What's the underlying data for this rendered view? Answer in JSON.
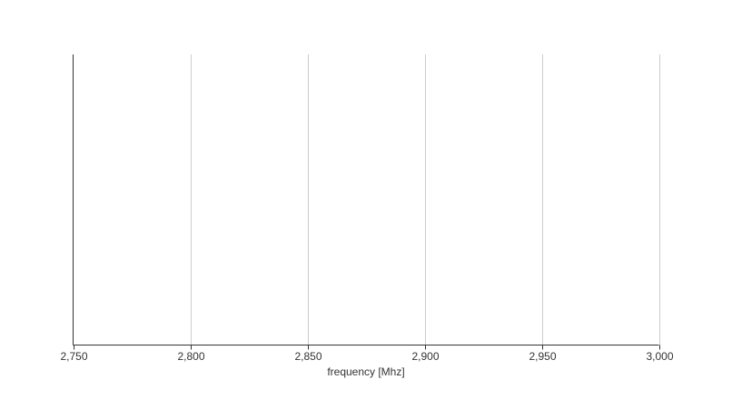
{
  "chart_data": {
    "type": "line",
    "title": "",
    "xlabel": "frequency [Mhz]",
    "ylabel": "",
    "xlim": [
      2750,
      3000
    ],
    "x_ticks": [
      2750,
      2800,
      2850,
      2900,
      2950,
      3000
    ],
    "x_tick_labels": [
      "2,750",
      "2,800",
      "2,850",
      "2,900",
      "2,950",
      "3,000"
    ],
    "series": [],
    "grid": {
      "x": true,
      "y": false
    },
    "colors": {
      "grid": "#cccccc",
      "axis": "#333333",
      "text": "#333333"
    }
  }
}
